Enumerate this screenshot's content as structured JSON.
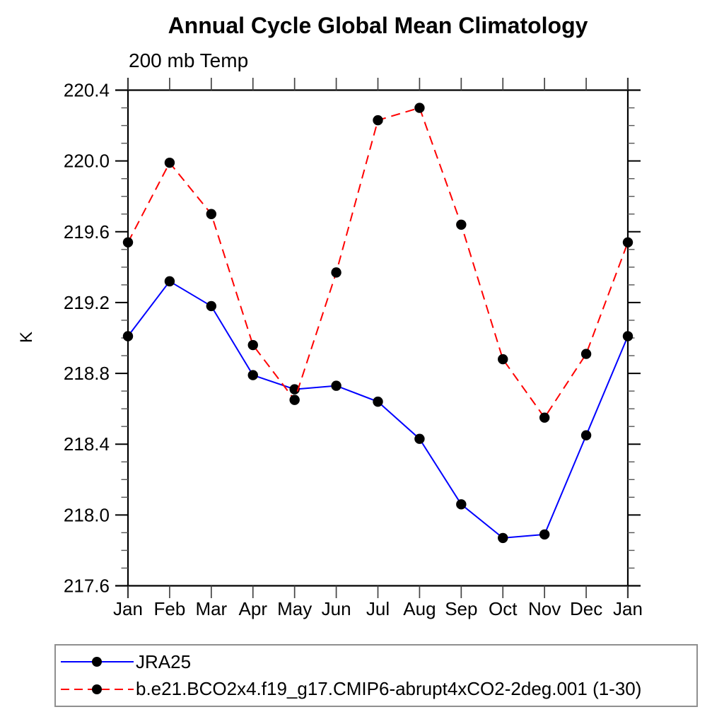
{
  "chart_data": {
    "type": "line",
    "title": "Annual Cycle Global Mean Climatology",
    "subtitle": "200 mb Temp",
    "ylabel": "K",
    "xlabel": "",
    "categories": [
      "Jan",
      "Feb",
      "Mar",
      "Apr",
      "May",
      "Jun",
      "Jul",
      "Aug",
      "Sep",
      "Oct",
      "Nov",
      "Dec",
      "Jan"
    ],
    "ylim": [
      217.6,
      220.4
    ],
    "ytick_major_interval": 0.4,
    "ytick_minor_interval": 0.1,
    "ytick_labels": [
      "217.6",
      "218.0",
      "218.4",
      "218.8",
      "219.2",
      "219.6",
      "220.0",
      "220.4"
    ],
    "grid": false,
    "legend_position": "bottom-left",
    "marker": "filled-circle",
    "marker_color": "#000000",
    "series": [
      {
        "name": "JRA25",
        "color": "#0000ff",
        "line_style": "solid",
        "values": [
          219.01,
          219.32,
          219.18,
          218.79,
          218.71,
          218.73,
          218.64,
          218.43,
          218.06,
          217.87,
          217.89,
          218.45,
          219.01
        ]
      },
      {
        "name": "b.e21.BCO2x4.f19_g17.CMIP6-abrupt4xCO2-2deg.001 (1-30)",
        "color": "#ff0000",
        "line_style": "dashed",
        "values": [
          219.54,
          219.99,
          219.7,
          218.96,
          218.65,
          219.37,
          220.23,
          220.3,
          219.64,
          218.88,
          218.55,
          218.91,
          219.54
        ]
      }
    ]
  }
}
